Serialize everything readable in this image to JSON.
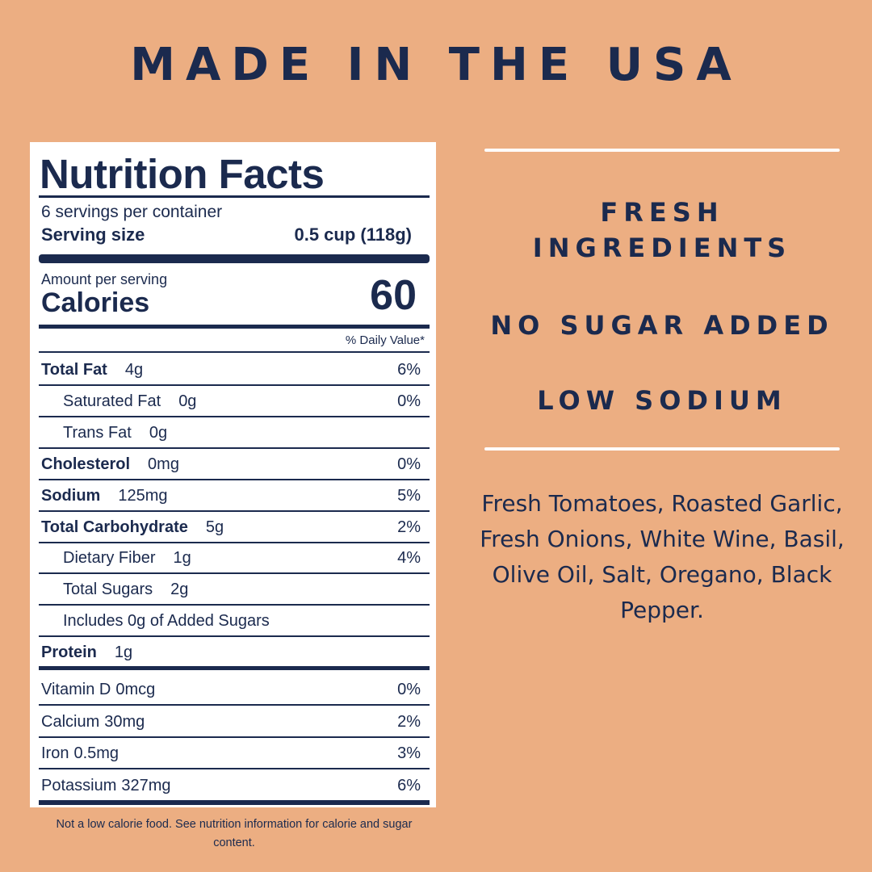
{
  "header": {
    "title": "MADE IN THE USA"
  },
  "label": {
    "title": "Nutrition Facts",
    "servings": "6 servings per container",
    "serving_size_label": "Serving size",
    "serving_size": "0.5 cup (118g)",
    "amount_per_serving": "Amount per serving",
    "calories_label": "Calories",
    "calories": "60",
    "daily_value_header": "% Daily Value*",
    "rows": [
      {
        "name": "Total Fat",
        "amount": "4g",
        "dv": "6%",
        "bold": true
      },
      {
        "name": "Saturated Fat",
        "amount": "0g",
        "dv": "0%",
        "indent": true
      },
      {
        "name": "Trans Fat",
        "amount": "0g",
        "indent": true
      },
      {
        "name": "Cholesterol",
        "amount": "0mg",
        "dv": "0%",
        "bold": true
      },
      {
        "name": "Sodium",
        "amount": "125mg",
        "dv": "5%",
        "bold": true
      },
      {
        "name": "Total Carbohydrate",
        "amount": "5g",
        "dv": "2%",
        "bold": true
      },
      {
        "name": "Dietary Fiber",
        "amount": "1g",
        "dv": "4%",
        "indent": true
      },
      {
        "name": "Total Sugars",
        "amount": "2g",
        "indent": true
      },
      {
        "name": "Includes 0g of Added Sugars",
        "indent": true
      },
      {
        "name": "Protein",
        "amount": "1g",
        "bold": true
      }
    ],
    "vitamins": [
      {
        "name": "Vitamin D",
        "amount": "0mcg",
        "dv": "0%"
      },
      {
        "name": "Calcium",
        "amount": "30mg",
        "dv": "2%"
      },
      {
        "name": "Iron",
        "amount": "0.5mg",
        "dv": "3%"
      },
      {
        "name": "Potassium",
        "amount": "327mg",
        "dv": "6%"
      }
    ]
  },
  "footnote": "Not a low calorie food. See nutrition information for calorie and sugar content.",
  "features": [
    "FRESH INGREDIENTS",
    "NO SUGAR ADDED",
    "LOW SODIUM"
  ],
  "ingredients": "Fresh Tomatoes, Roasted Garlic, Fresh Onions, White Wine, Basil, Olive Oil, Salt, Oregano, Black Pepper."
}
